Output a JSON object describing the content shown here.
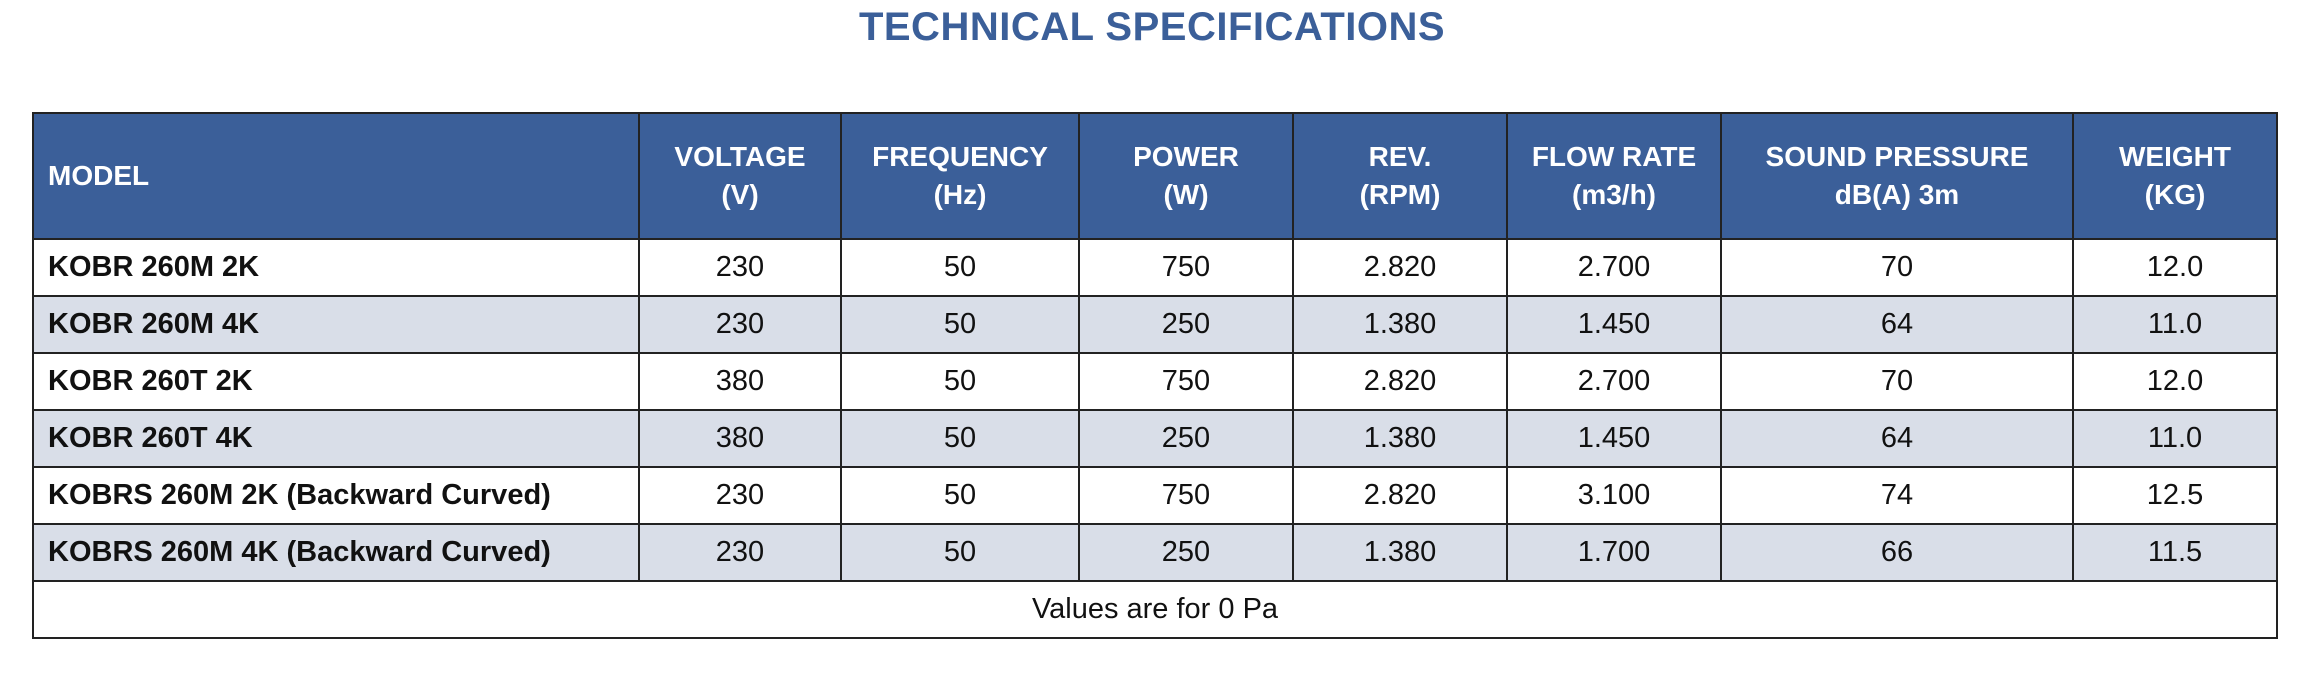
{
  "title": "TECHNICAL SPECIFICATIONS",
  "colors": {
    "title": "#3b5f99",
    "header_bg": "#3b5f99",
    "header_text": "#ffffff",
    "alt_row_bg": "#d9dee8",
    "border": "#222222"
  },
  "table": {
    "headers": [
      [
        "MODEL"
      ],
      [
        "VOLTAGE",
        "(V)"
      ],
      [
        "FREQUENCY",
        "(Hz)"
      ],
      [
        "POWER",
        "(W)"
      ],
      [
        "REV.",
        "(RPM)"
      ],
      [
        "FLOW RATE",
        "(m3/h)"
      ],
      [
        "SOUND PRESSURE",
        "dB(A) 3m"
      ],
      [
        "WEIGHT",
        "(KG)"
      ]
    ],
    "rows": [
      [
        "KOBR 260M 2K",
        "230",
        "50",
        "750",
        "2.820",
        "2.700",
        "70",
        "12.0"
      ],
      [
        "KOBR 260M 4K",
        "230",
        "50",
        "250",
        "1.380",
        "1.450",
        "64",
        "11.0"
      ],
      [
        "KOBR 260T 2K",
        "380",
        "50",
        "750",
        "2.820",
        "2.700",
        "70",
        "12.0"
      ],
      [
        "KOBR 260T 4K",
        "380",
        "50",
        "250",
        "1.380",
        "1.450",
        "64",
        "11.0"
      ],
      [
        "KOBRS 260M 2K (Backward Curved)",
        "230",
        "50",
        "750",
        "2.820",
        "3.100",
        "74",
        "12.5"
      ],
      [
        "KOBRS 260M 4K (Backward Curved)",
        "230",
        "50",
        "250",
        "1.380",
        "1.700",
        "66",
        "11.5"
      ]
    ],
    "footer_note": "Values are for 0 Pa"
  }
}
